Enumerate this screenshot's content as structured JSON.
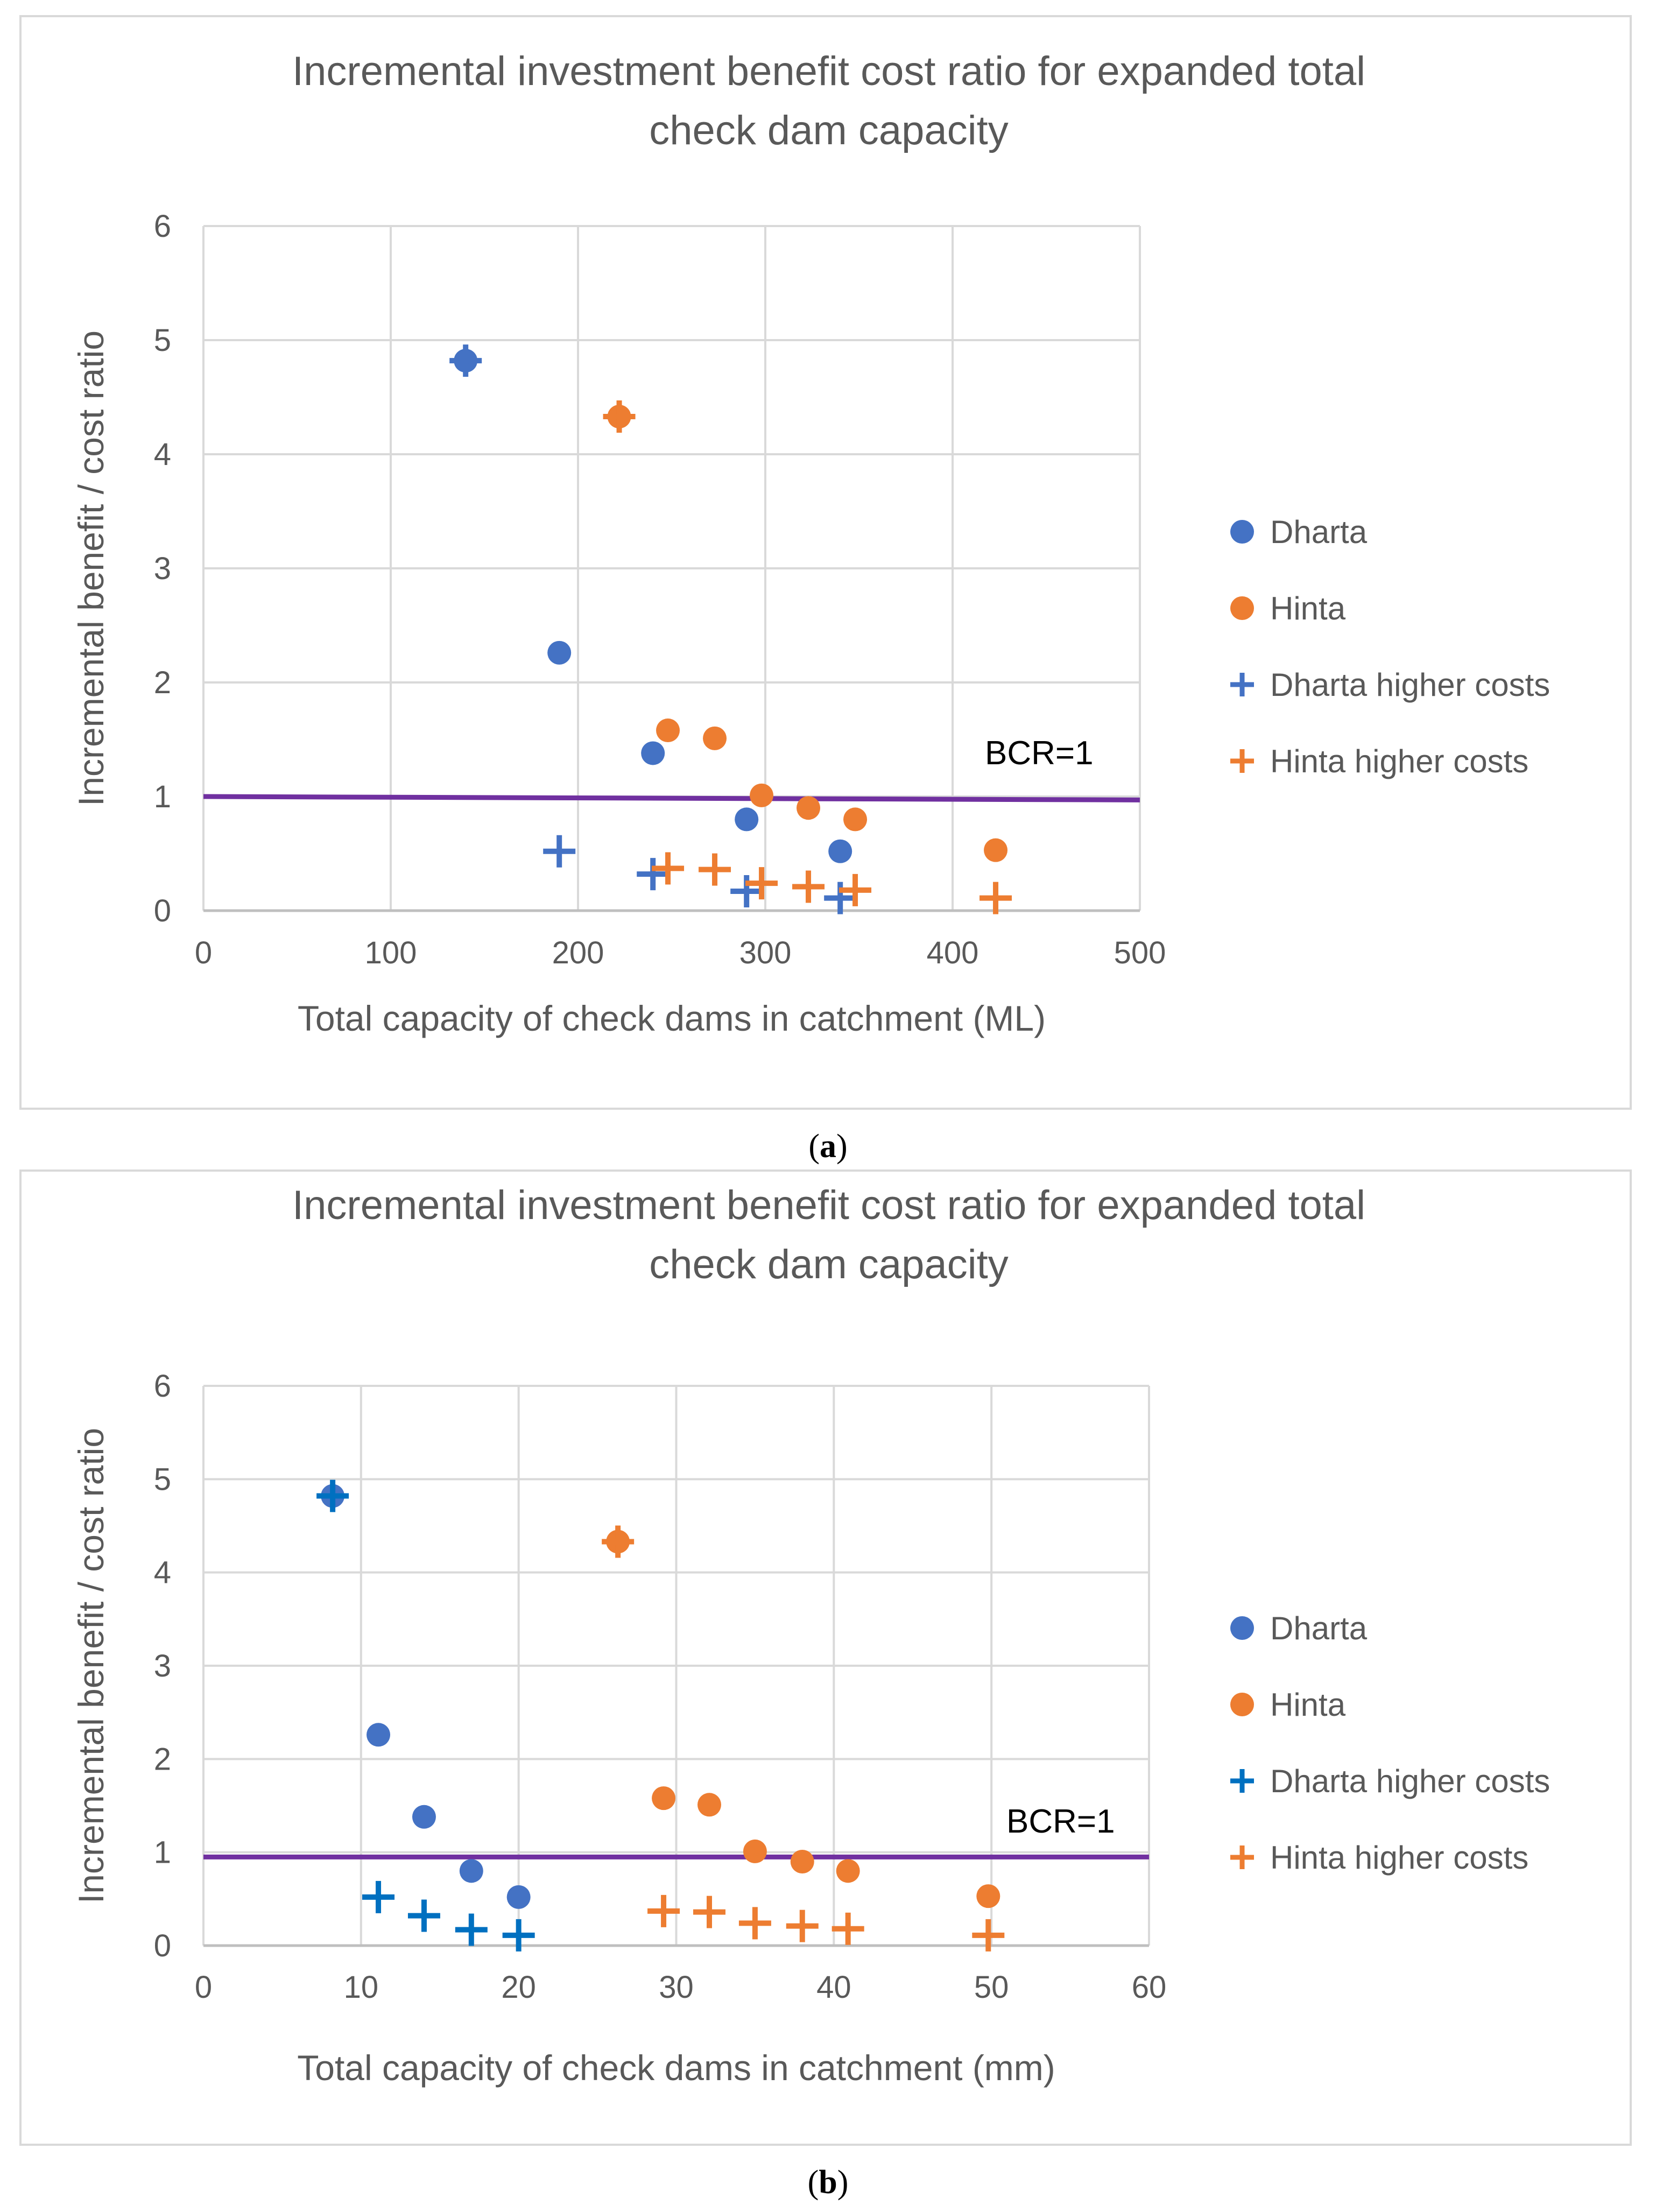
{
  "chart_data": [
    {
      "panel_label": "a",
      "type": "scatter",
      "title": "Incremental investment benefit cost ratio for expanded total check dam capacity",
      "title_lines": [
        "Incremental investment benefit cost ratio for expanded total",
        "check dam capacity"
      ],
      "xlabel": "Total capacity of check dams in catchment (ML)",
      "ylabel": "Incremental benefit / cost ratio",
      "xlim": [
        0,
        500
      ],
      "ylim": [
        0,
        6
      ],
      "xticks": [
        0,
        100,
        200,
        300,
        400,
        500
      ],
      "yticks": [
        0,
        1,
        2,
        3,
        4,
        5,
        6
      ],
      "grid": true,
      "legend_position": "right",
      "reference_line": {
        "label": "BCR=1",
        "x": [
          0,
          500
        ],
        "y": [
          1.0,
          0.97
        ],
        "color": "#7030A0"
      },
      "series": [
        {
          "name": "Dharta",
          "marker": "circle",
          "color": "#4472C4",
          "points": [
            [
              140,
              4.82
            ],
            [
              190,
              2.26
            ],
            [
              240,
              1.38
            ],
            [
              290,
              0.8
            ],
            [
              340,
              0.52
            ]
          ]
        },
        {
          "name": "Hinta",
          "marker": "circle",
          "color": "#ED7D31",
          "points": [
            [
              222,
              4.33
            ],
            [
              248,
              1.58
            ],
            [
              273,
              1.51
            ],
            [
              298,
              1.01
            ],
            [
              323,
              0.9
            ],
            [
              348,
              0.8
            ],
            [
              423,
              0.53
            ]
          ]
        },
        {
          "name": "Dharta higher costs",
          "marker": "plus",
          "color": "#4472C4",
          "points": [
            [
              140,
              4.82
            ],
            [
              190,
              0.52
            ],
            [
              240,
              0.32
            ],
            [
              290,
              0.17
            ],
            [
              340,
              0.11
            ]
          ]
        },
        {
          "name": "Hinta higher costs",
          "marker": "plus",
          "color": "#ED7D31",
          "points": [
            [
              222,
              4.33
            ],
            [
              248,
              0.37
            ],
            [
              273,
              0.36
            ],
            [
              298,
              0.24
            ],
            [
              323,
              0.21
            ],
            [
              348,
              0.18
            ],
            [
              423,
              0.11
            ]
          ]
        }
      ]
    },
    {
      "panel_label": "b",
      "type": "scatter",
      "title": "Incremental investment benefit cost ratio for expanded total check dam capacity",
      "title_lines": [
        "Incremental investment benefit cost ratio for expanded total",
        "check dam capacity"
      ],
      "xlabel": "Total capacity of check dams in catchment (mm)",
      "ylabel": "Incremental benefit / cost ratio",
      "xlim": [
        0,
        60
      ],
      "ylim": [
        0,
        6
      ],
      "xticks": [
        0,
        10,
        20,
        30,
        40,
        50,
        60
      ],
      "yticks": [
        0,
        1,
        2,
        3,
        4,
        5,
        6
      ],
      "grid": true,
      "legend_position": "right",
      "reference_line": {
        "label": "BCR=1",
        "x": [
          0,
          60
        ],
        "y": [
          0.95,
          0.95
        ],
        "color": "#7030A0"
      },
      "series": [
        {
          "name": "Dharta",
          "marker": "circle",
          "color": "#4472C4",
          "points": [
            [
              8.2,
              4.82
            ],
            [
              11.1,
              2.26
            ],
            [
              14.0,
              1.38
            ],
            [
              17.0,
              0.8
            ],
            [
              20.0,
              0.52
            ]
          ]
        },
        {
          "name": "Hinta",
          "marker": "circle",
          "color": "#ED7D31",
          "points": [
            [
              26.3,
              4.33
            ],
            [
              29.2,
              1.58
            ],
            [
              32.1,
              1.51
            ],
            [
              35.0,
              1.01
            ],
            [
              38.0,
              0.9
            ],
            [
              40.9,
              0.8
            ],
            [
              49.8,
              0.53
            ]
          ]
        },
        {
          "name": "Dharta higher costs",
          "marker": "plus",
          "color": "#0070C0",
          "points": [
            [
              8.2,
              4.82
            ],
            [
              11.1,
              0.52
            ],
            [
              14.0,
              0.32
            ],
            [
              17.0,
              0.17
            ],
            [
              20.0,
              0.11
            ]
          ]
        },
        {
          "name": "Hinta higher costs",
          "marker": "plus",
          "color": "#ED7D31",
          "points": [
            [
              26.3,
              4.33
            ],
            [
              29.2,
              0.37
            ],
            [
              32.1,
              0.36
            ],
            [
              35.0,
              0.24
            ],
            [
              38.0,
              0.21
            ],
            [
              40.9,
              0.18
            ],
            [
              49.8,
              0.11
            ]
          ]
        }
      ]
    }
  ]
}
